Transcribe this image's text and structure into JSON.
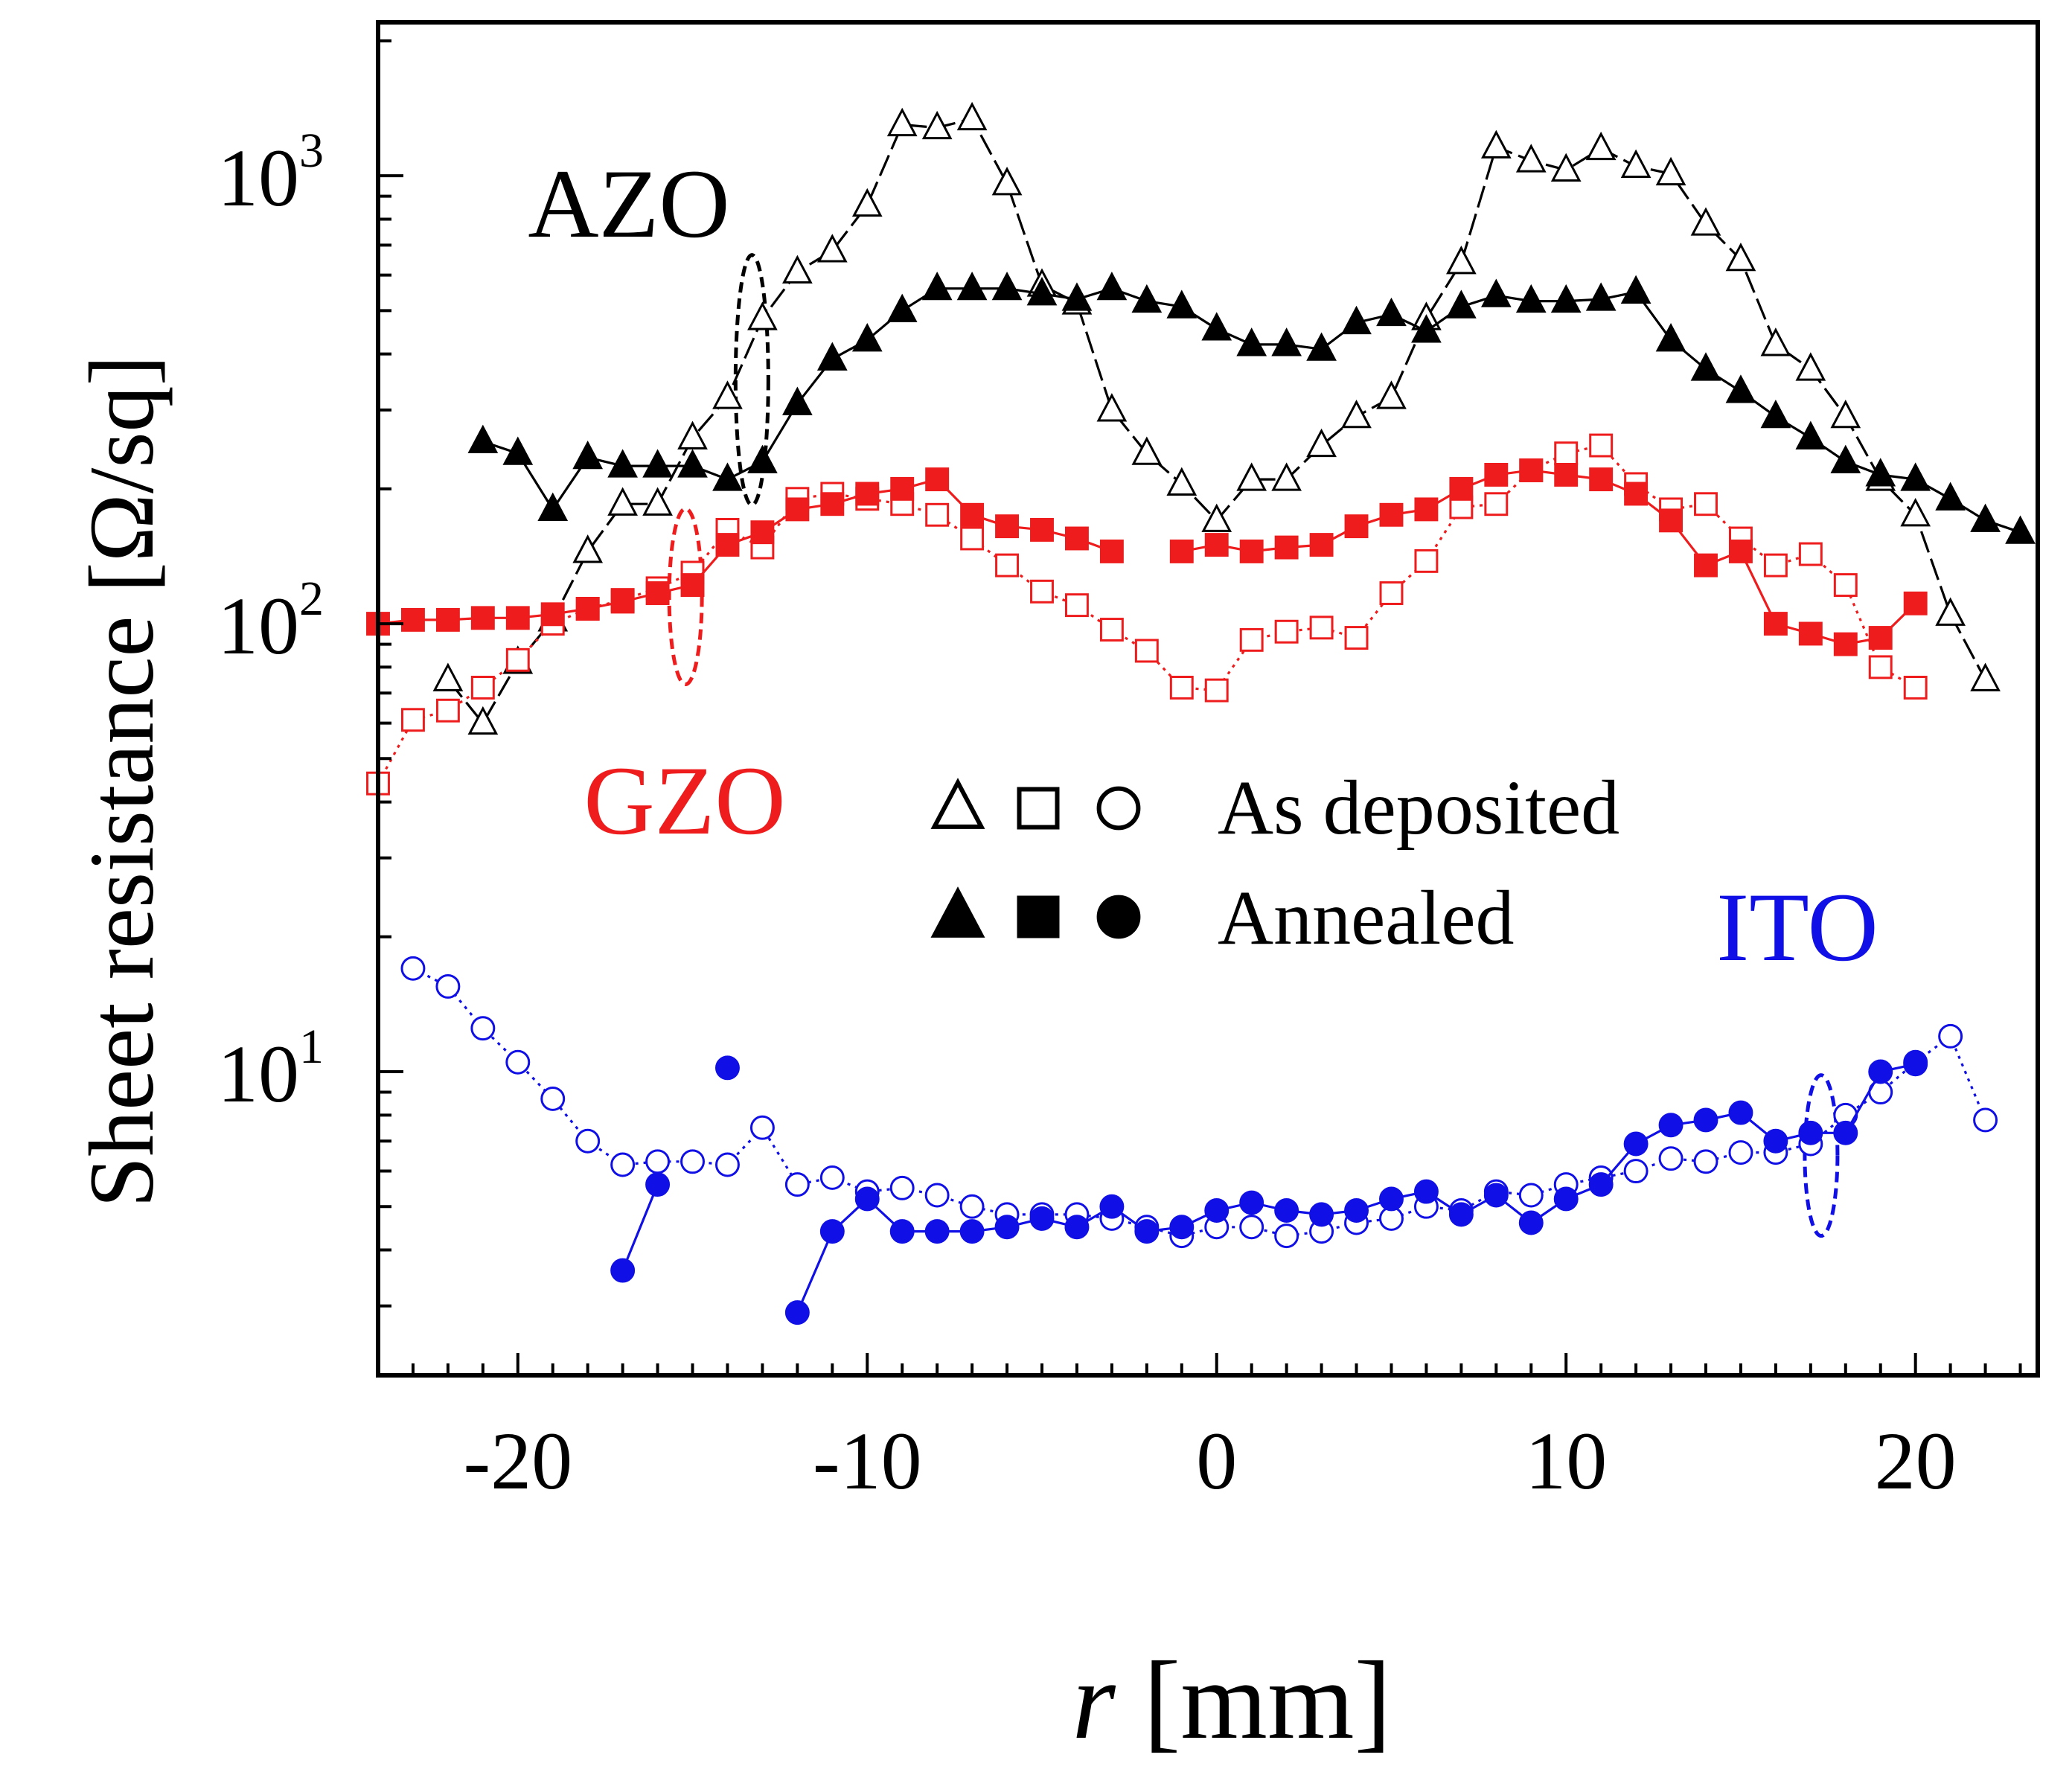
{
  "chart_data": {
    "type": "scatter",
    "title": "",
    "xlabel_italic": "r",
    "xlabel_unit": " [mm]",
    "ylabel": "Sheet resistance [Ω/sq]",
    "xlim": [
      -24,
      23.5
    ],
    "ylim": [
      2.1,
      2200
    ],
    "yscale": "log",
    "x_ticks": [
      -20,
      -10,
      0,
      10,
      20
    ],
    "x_tick_labels": [
      "-20",
      "-10",
      "0",
      "10",
      "20"
    ],
    "y_tick_base": "10",
    "y_ticks": [
      {
        "value": 10,
        "exp": "1"
      },
      {
        "value": 100,
        "exp": "2"
      },
      {
        "value": 1000,
        "exp": "3"
      }
    ],
    "colors": {
      "AZO": "#000000",
      "GZO": "#ee1c1c",
      "ITO": "#1010e6",
      "axis": "#000000"
    },
    "labels": {
      "AZO": "AZO",
      "GZO": "GZO",
      "ITO": "ITO"
    },
    "legend": {
      "as_deposited": "As deposited",
      "annealed": "Annealed",
      "placement": "center"
    },
    "series": [
      {
        "name": "AZO as deposited",
        "material": "AZO",
        "marker": "triangle",
        "filled": false,
        "dash": "long-dash",
        "x": [
          -22,
          -21,
          -20,
          -19,
          -18,
          -17,
          -16,
          -15,
          -14,
          -13,
          -12,
          -11,
          -10,
          -9,
          -8,
          -7,
          -6,
          -5,
          -4,
          -3,
          -2,
          -1,
          0,
          1,
          2,
          3,
          4,
          5,
          6,
          7,
          8,
          9,
          10,
          11,
          12,
          13,
          14,
          15,
          16,
          17,
          18,
          19,
          20,
          21,
          22
        ],
        "y": [
          75,
          60,
          82,
          102,
          145,
          185,
          185,
          260,
          320,
          480,
          610,
          680,
          860,
          1300,
          1280,
          1340,
          960,
          570,
          520,
          300,
          240,
          205,
          170,
          210,
          210,
          250,
          290,
          320,
          480,
          640,
          1160,
          1080,
          1030,
          1150,
          1050,
          1010,
          780,
          650,
          420,
          370,
          290,
          210,
          175,
          105,
          75
        ]
      },
      {
        "name": "AZO annealed",
        "material": "AZO",
        "marker": "triangle",
        "filled": true,
        "dash": "solid",
        "x": [
          -21,
          -20,
          -19,
          -18,
          -17,
          -16,
          -15,
          -14,
          -13,
          -12,
          -11,
          -10,
          -9,
          -8,
          -7,
          -6,
          -5,
          -4,
          -3,
          -2,
          -1,
          0,
          1,
          2,
          3,
          4,
          5,
          6,
          7,
          8,
          9,
          10,
          11,
          12,
          13,
          14,
          15,
          16,
          17,
          18,
          19,
          20,
          21,
          22,
          23
        ],
        "y": [
          255,
          240,
          180,
          235,
          225,
          225,
          225,
          210,
          230,
          310,
          390,
          430,
          500,
          560,
          560,
          560,
          545,
          530,
          560,
          525,
          510,
          455,
          420,
          420,
          410,
          470,
          490,
          450,
          510,
          540,
          525,
          525,
          530,
          550,
          430,
          370,
          330,
          290,
          260,
          230,
          215,
          210,
          190,
          170,
          160
        ]
      },
      {
        "name": "GZO as deposited",
        "material": "GZO",
        "marker": "square",
        "filled": false,
        "dash": "dotted",
        "x": [
          -24,
          -23,
          -22,
          -21,
          -20,
          -19,
          -18,
          -17,
          -16,
          -15,
          -14,
          -13,
          -12,
          -11,
          -10,
          -9,
          -8,
          -7,
          -6,
          -5,
          -4,
          -3,
          -2,
          -1,
          0,
          1,
          2,
          3,
          4,
          5,
          6,
          7,
          8,
          9,
          10,
          11,
          12,
          13,
          14,
          15,
          16,
          17,
          18,
          19,
          20
        ],
        "y": [
          44,
          61,
          64,
          72,
          83,
          100,
          108,
          113,
          120,
          130,
          162,
          148,
          190,
          195,
          190,
          185,
          175,
          155,
          135,
          118,
          110,
          97,
          87,
          72,
          71,
          92,
          96,
          98,
          93,
          117,
          138,
          182,
          185,
          220,
          240,
          250,
          205,
          180,
          185,
          155,
          135,
          143,
          122,
          80,
          72
        ]
      },
      {
        "name": "GZO annealed",
        "material": "GZO",
        "marker": "square",
        "filled": true,
        "dash": "solid",
        "x": [
          -24,
          -23,
          -22,
          -21,
          -20,
          -19,
          -18,
          -17,
          -16,
          -15,
          -14,
          -13,
          -12,
          -11,
          -10,
          -9,
          -8,
          -7,
          -6,
          -5,
          -4,
          -3,
          null,
          -1,
          0,
          1,
          2,
          3,
          4,
          5,
          6,
          7,
          8,
          9,
          10,
          11,
          12,
          13,
          14,
          15,
          16,
          17,
          18,
          19,
          20
        ],
        "y": [
          100,
          102,
          102,
          103,
          103,
          105,
          108,
          112,
          117,
          122,
          150,
          160,
          180,
          185,
          195,
          200,
          210,
          175,
          165,
          162,
          155,
          145,
          null,
          145,
          150,
          145,
          148,
          150,
          165,
          175,
          180,
          200,
          215,
          220,
          215,
          210,
          195,
          170,
          135,
          145,
          100,
          95,
          90,
          93,
          111
        ]
      },
      {
        "name": "ITO as deposited",
        "material": "ITO",
        "marker": "circle",
        "filled": false,
        "dash": "dotted",
        "x": [
          -23,
          -22,
          -21,
          -20,
          -19,
          -18,
          -17,
          -16,
          -15,
          -14,
          -13,
          -12,
          -11,
          -10,
          -9,
          -8,
          -7,
          -6,
          -5,
          -4,
          -3,
          -2,
          -1,
          0,
          1,
          2,
          3,
          4,
          5,
          6,
          7,
          8,
          9,
          10,
          11,
          12,
          13,
          14,
          15,
          16,
          17,
          18,
          19,
          20,
          21,
          22
        ],
        "y": [
          17,
          15.5,
          12.5,
          10.5,
          8.7,
          7,
          6.2,
          6.3,
          6.3,
          6.2,
          7.5,
          5.6,
          5.8,
          5.4,
          5.5,
          5.3,
          5,
          4.8,
          4.8,
          4.8,
          4.7,
          4.5,
          4.3,
          4.5,
          4.5,
          4.3,
          4.4,
          4.6,
          4.7,
          5,
          4.9,
          5.4,
          5.3,
          5.6,
          5.8,
          6,
          6.4,
          6.3,
          6.6,
          6.6,
          6.9,
          8,
          9,
          10.5,
          12,
          7.8
        ]
      },
      {
        "name": "ITO annealed",
        "material": "ITO",
        "marker": "circle",
        "filled": true,
        "dash": "solid",
        "x": [
          -17,
          -16,
          null,
          -14,
          null,
          -12,
          -11,
          -10,
          -9,
          -8,
          -7,
          -6,
          -5,
          -4,
          -3,
          -2,
          -1,
          0,
          1,
          2,
          3,
          4,
          5,
          6,
          7,
          8,
          9,
          10,
          11,
          12,
          13,
          14,
          15,
          16,
          17,
          18,
          19,
          20
        ],
        "y": [
          3.6,
          5.6,
          null,
          10.2,
          null,
          2.9,
          4.4,
          5.2,
          4.4,
          4.4,
          4.4,
          4.5,
          4.7,
          4.5,
          5,
          4.4,
          4.5,
          4.9,
          5.1,
          4.9,
          4.8,
          4.9,
          5.2,
          5.4,
          4.8,
          5.3,
          4.6,
          5.2,
          5.6,
          6.9,
          7.6,
          7.8,
          8.1,
          7,
          7.3,
          7.3,
          10,
          10.4
        ]
      }
    ]
  }
}
